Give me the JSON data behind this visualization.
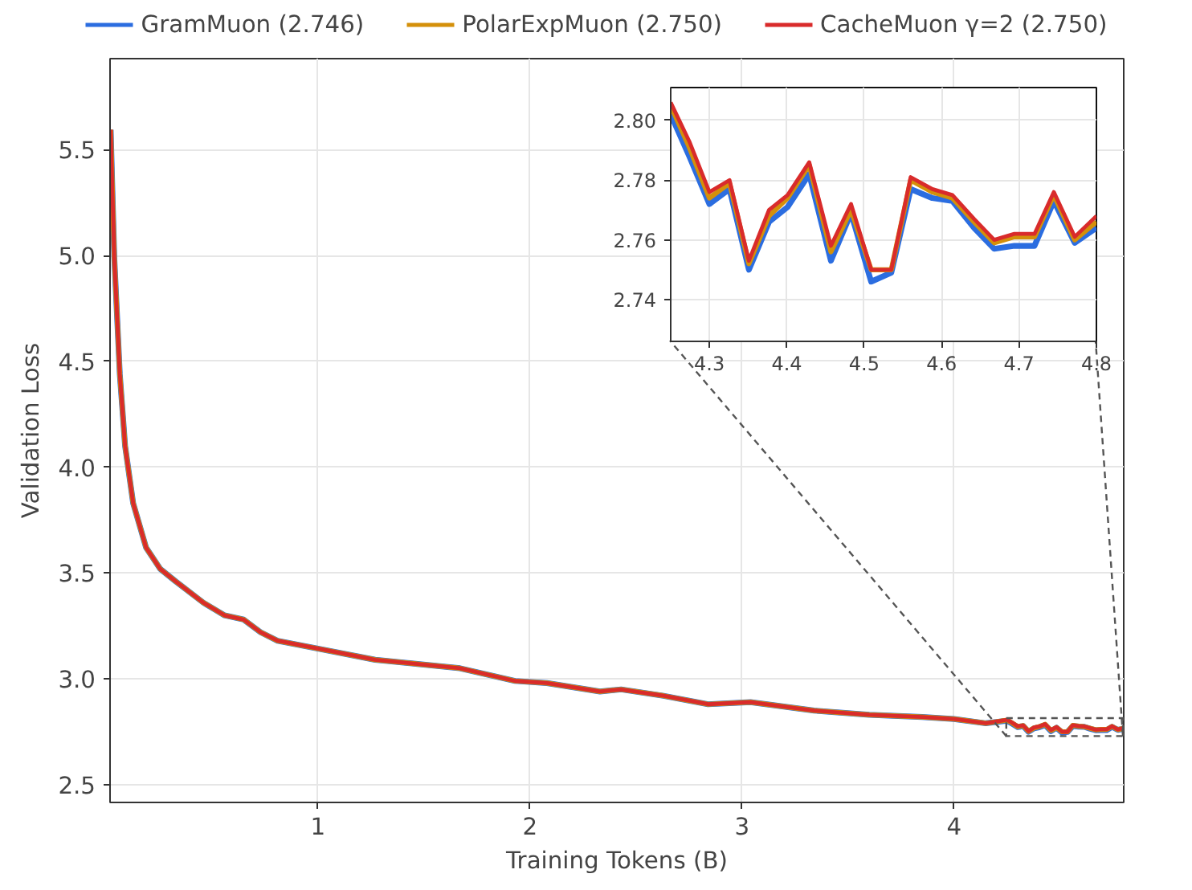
{
  "chart_data": [
    {
      "type": "line",
      "xlabel": "Training Tokens (B)",
      "ylabel": "Validation Loss",
      "xlim": [
        0.02,
        4.8
      ],
      "ylim": [
        2.416,
        5.93
      ],
      "xticks": [
        1,
        2,
        3,
        4
      ],
      "yticks": [
        2.5,
        {
          "value": 3,
          "label": "3.0"
        },
        3.5,
        {
          "value": 4,
          "label": "4.0"
        },
        4.5,
        {
          "value": 5,
          "label": "5.0"
        },
        5.5
      ],
      "grid": true,
      "legend": "top",
      "line_style": "solid",
      "marker": "none",
      "x": [
        0.023,
        0.04,
        0.066,
        0.091,
        0.129,
        0.19,
        0.256,
        0.33,
        0.46,
        0.56,
        0.65,
        0.73,
        0.81,
        1.015,
        1.27,
        1.47,
        1.67,
        1.93,
        2.08,
        2.33,
        2.43,
        2.63,
        2.84,
        3.04,
        3.34,
        3.6,
        3.85,
        4.0,
        4.15,
        4.25,
        4.274,
        4.3,
        4.326,
        4.351,
        4.377,
        4.401,
        4.429,
        4.457,
        4.483,
        4.509,
        4.535,
        4.56,
        4.588,
        4.614,
        4.642,
        4.668,
        4.694,
        4.72,
        4.745,
        4.772,
        4.8
      ],
      "series": [
        {
          "name": "GramMuon (2.746)",
          "color": "#2b6de0",
          "values": [
            5.594,
            4.99,
            4.44,
            4.1,
            3.83,
            3.62,
            3.52,
            3.46,
            3.36,
            3.3,
            3.28,
            3.22,
            3.18,
            3.14,
            3.09,
            3.07,
            3.05,
            2.99,
            2.98,
            2.94,
            2.95,
            2.92,
            2.88,
            2.89,
            2.85,
            2.83,
            2.82,
            2.81,
            2.79,
            2.802,
            2.788,
            2.772,
            2.777,
            2.75,
            2.766,
            2.771,
            2.782,
            2.753,
            2.769,
            2.746,
            2.749,
            2.777,
            2.774,
            2.773,
            2.764,
            2.757,
            2.758,
            2.758,
            2.773,
            2.759,
            2.764
          ]
        },
        {
          "name": "PolarExpMuon (2.750)",
          "color": "#d4900a",
          "values": [
            5.594,
            4.99,
            4.44,
            4.1,
            3.83,
            3.62,
            3.52,
            3.46,
            3.36,
            3.3,
            3.28,
            3.22,
            3.18,
            3.14,
            3.09,
            3.07,
            3.05,
            2.99,
            2.98,
            2.94,
            2.95,
            2.92,
            2.88,
            2.89,
            2.85,
            2.83,
            2.82,
            2.81,
            2.79,
            2.805,
            2.791,
            2.774,
            2.779,
            2.752,
            2.768,
            2.774,
            2.785,
            2.756,
            2.77,
            2.75,
            2.75,
            2.78,
            2.776,
            2.774,
            2.766,
            2.759,
            2.761,
            2.761,
            2.775,
            2.76,
            2.766
          ]
        },
        {
          "name": "CacheMuon γ=2 (2.750)",
          "color": "#d92b2b",
          "values": [
            5.594,
            4.99,
            4.44,
            4.1,
            3.83,
            3.62,
            3.52,
            3.46,
            3.36,
            3.3,
            3.28,
            3.22,
            3.18,
            3.14,
            3.09,
            3.07,
            3.05,
            2.99,
            2.98,
            2.94,
            2.95,
            2.92,
            2.88,
            2.89,
            2.85,
            2.83,
            2.82,
            2.81,
            2.79,
            2.806,
            2.793,
            2.776,
            2.78,
            2.753,
            2.77,
            2.775,
            2.786,
            2.758,
            2.772,
            2.75,
            2.75,
            2.781,
            2.777,
            2.775,
            2.767,
            2.76,
            2.762,
            2.762,
            2.776,
            2.761,
            2.768
          ]
        }
      ]
    },
    {
      "type": "line",
      "xlim": [
        4.25,
        4.8
      ],
      "ylim": [
        2.726,
        2.811
      ],
      "xticks": [
        4.3,
        4.4,
        4.5,
        4.6,
        4.7,
        4.8
      ],
      "yticks": [
        {
          "value": 2.74,
          "label": "2.74"
        },
        {
          "value": 2.76,
          "label": "2.76"
        },
        {
          "value": 2.78,
          "label": "2.78"
        },
        {
          "value": 2.8,
          "label": "2.80"
        }
      ],
      "grid": true,
      "line_style": "solid",
      "marker": "none",
      "x": [
        4.25,
        4.274,
        4.3,
        4.326,
        4.351,
        4.377,
        4.401,
        4.429,
        4.457,
        4.483,
        4.509,
        4.535,
        4.56,
        4.588,
        4.614,
        4.642,
        4.668,
        4.694,
        4.72,
        4.745,
        4.772,
        4.8
      ],
      "series": [
        {
          "color": "#2b6de0",
          "values": [
            2.802,
            2.788,
            2.772,
            2.777,
            2.75,
            2.766,
            2.771,
            2.782,
            2.753,
            2.769,
            2.746,
            2.749,
            2.777,
            2.774,
            2.773,
            2.764,
            2.757,
            2.758,
            2.758,
            2.773,
            2.759,
            2.764
          ]
        },
        {
          "color": "#d4900a",
          "values": [
            2.805,
            2.791,
            2.774,
            2.779,
            2.752,
            2.768,
            2.774,
            2.785,
            2.756,
            2.77,
            2.75,
            2.75,
            2.78,
            2.776,
            2.774,
            2.766,
            2.759,
            2.761,
            2.761,
            2.775,
            2.76,
            2.766
          ]
        },
        {
          "color": "#d92b2b",
          "values": [
            2.806,
            2.793,
            2.776,
            2.78,
            2.753,
            2.77,
            2.775,
            2.786,
            2.758,
            2.772,
            2.75,
            2.75,
            2.781,
            2.777,
            2.775,
            2.767,
            2.76,
            2.762,
            2.762,
            2.776,
            2.761,
            2.768
          ]
        }
      ]
    }
  ]
}
